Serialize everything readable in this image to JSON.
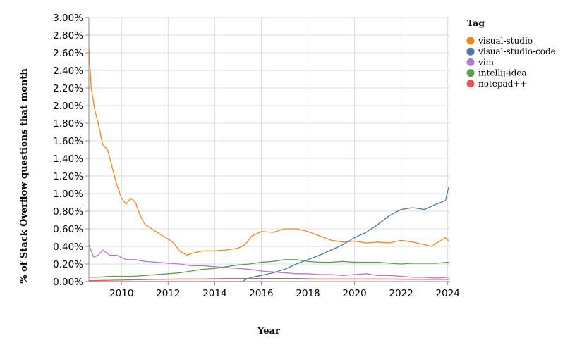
{
  "chart_data": {
    "type": "line",
    "title": "",
    "xlabel": "Year",
    "ylabel": "% of Stack Overflow questions that month",
    "xlim": [
      2008.6,
      2024.1
    ],
    "ylim": [
      0,
      3.0
    ],
    "x_ticks": [
      2010,
      2012,
      2014,
      2016,
      2018,
      2020,
      2022,
      2024
    ],
    "x_tick_labels": [
      "2010",
      "2012",
      "2014",
      "2016",
      "2018",
      "2020",
      "2022",
      "2024"
    ],
    "y_ticks": [
      0,
      0.2,
      0.4,
      0.6,
      0.8,
      1.0,
      1.2,
      1.4,
      1.6,
      1.8,
      2.0,
      2.2,
      2.4,
      2.6,
      2.8,
      3.0
    ],
    "y_tick_labels": [
      "0.00%",
      "0.20%",
      "0.40%",
      "0.60%",
      "0.80%",
      "1.00%",
      "1.20%",
      "1.40%",
      "1.60%",
      "1.80%",
      "2.00%",
      "2.20%",
      "2.40%",
      "2.60%",
      "2.80%",
      "3.00%"
    ],
    "grid": true,
    "legend": {
      "title": "Tag",
      "position": "right"
    },
    "series": [
      {
        "name": "visual-studio",
        "color": "#f58518",
        "points": [
          [
            2008.6,
            2.65
          ],
          [
            2008.7,
            2.2
          ],
          [
            2008.85,
            1.95
          ],
          [
            2009.0,
            1.8
          ],
          [
            2009.2,
            1.55
          ],
          [
            2009.4,
            1.5
          ],
          [
            2009.6,
            1.3
          ],
          [
            2009.8,
            1.1
          ],
          [
            2010.0,
            0.95
          ],
          [
            2010.2,
            0.88
          ],
          [
            2010.4,
            0.95
          ],
          [
            2010.6,
            0.9
          ],
          [
            2010.8,
            0.75
          ],
          [
            2011.0,
            0.65
          ],
          [
            2011.3,
            0.6
          ],
          [
            2011.6,
            0.55
          ],
          [
            2011.9,
            0.5
          ],
          [
            2012.2,
            0.45
          ],
          [
            2012.5,
            0.35
          ],
          [
            2012.8,
            0.3
          ],
          [
            2013.0,
            0.32
          ],
          [
            2013.5,
            0.35
          ],
          [
            2014.0,
            0.35
          ],
          [
            2014.5,
            0.36
          ],
          [
            2015.0,
            0.38
          ],
          [
            2015.3,
            0.42
          ],
          [
            2015.6,
            0.52
          ],
          [
            2016.0,
            0.57
          ],
          [
            2016.5,
            0.56
          ],
          [
            2017.0,
            0.6
          ],
          [
            2017.5,
            0.6
          ],
          [
            2018.0,
            0.57
          ],
          [
            2018.5,
            0.52
          ],
          [
            2019.0,
            0.47
          ],
          [
            2019.5,
            0.45
          ],
          [
            2020.0,
            0.46
          ],
          [
            2020.5,
            0.44
          ],
          [
            2021.0,
            0.45
          ],
          [
            2021.5,
            0.44
          ],
          [
            2022.0,
            0.47
          ],
          [
            2022.5,
            0.45
          ],
          [
            2023.0,
            0.42
          ],
          [
            2023.3,
            0.4
          ],
          [
            2023.6,
            0.45
          ],
          [
            2023.9,
            0.5
          ],
          [
            2024.05,
            0.46
          ]
        ]
      },
      {
        "name": "visual-studio-code",
        "color": "#4c78a8",
        "points": [
          [
            2008.6,
            0
          ],
          [
            2015.2,
            0
          ],
          [
            2015.3,
            0.02
          ],
          [
            2015.6,
            0.05
          ],
          [
            2016.0,
            0.07
          ],
          [
            2016.5,
            0.1
          ],
          [
            2017.0,
            0.14
          ],
          [
            2017.5,
            0.2
          ],
          [
            2018.0,
            0.25
          ],
          [
            2018.5,
            0.3
          ],
          [
            2019.0,
            0.36
          ],
          [
            2019.5,
            0.42
          ],
          [
            2020.0,
            0.5
          ],
          [
            2020.5,
            0.56
          ],
          [
            2021.0,
            0.65
          ],
          [
            2021.5,
            0.75
          ],
          [
            2022.0,
            0.82
          ],
          [
            2022.5,
            0.84
          ],
          [
            2023.0,
            0.82
          ],
          [
            2023.5,
            0.88
          ],
          [
            2023.9,
            0.92
          ],
          [
            2024.05,
            1.08
          ]
        ]
      },
      {
        "name": "vim",
        "color": "#b279d2",
        "points": [
          [
            2008.6,
            0.42
          ],
          [
            2008.8,
            0.28
          ],
          [
            2009.0,
            0.3
          ],
          [
            2009.2,
            0.36
          ],
          [
            2009.5,
            0.3
          ],
          [
            2009.8,
            0.3
          ],
          [
            2010.2,
            0.25
          ],
          [
            2010.6,
            0.25
          ],
          [
            2011.0,
            0.23
          ],
          [
            2011.5,
            0.22
          ],
          [
            2012.0,
            0.21
          ],
          [
            2012.5,
            0.2
          ],
          [
            2013.0,
            0.18
          ],
          [
            2013.5,
            0.18
          ],
          [
            2014.0,
            0.17
          ],
          [
            2014.5,
            0.16
          ],
          [
            2015.0,
            0.15
          ],
          [
            2015.5,
            0.14
          ],
          [
            2016.0,
            0.12
          ],
          [
            2016.5,
            0.11
          ],
          [
            2017.0,
            0.1
          ],
          [
            2017.5,
            0.09
          ],
          [
            2018.0,
            0.09
          ],
          [
            2018.5,
            0.08
          ],
          [
            2019.0,
            0.08
          ],
          [
            2019.5,
            0.07
          ],
          [
            2020.0,
            0.08
          ],
          [
            2020.5,
            0.09
          ],
          [
            2021.0,
            0.07
          ],
          [
            2021.5,
            0.07
          ],
          [
            2022.0,
            0.06
          ],
          [
            2022.5,
            0.05
          ],
          [
            2023.0,
            0.05
          ],
          [
            2023.5,
            0.04
          ],
          [
            2024.05,
            0.05
          ]
        ]
      },
      {
        "name": "intellij-idea",
        "color": "#54a24b",
        "points": [
          [
            2008.6,
            0.05
          ],
          [
            2009.0,
            0.05
          ],
          [
            2009.5,
            0.06
          ],
          [
            2010.0,
            0.06
          ],
          [
            2010.5,
            0.06
          ],
          [
            2011.0,
            0.07
          ],
          [
            2011.5,
            0.08
          ],
          [
            2012.0,
            0.09
          ],
          [
            2012.5,
            0.1
          ],
          [
            2013.0,
            0.12
          ],
          [
            2013.5,
            0.14
          ],
          [
            2014.0,
            0.15
          ],
          [
            2014.5,
            0.17
          ],
          [
            2015.0,
            0.19
          ],
          [
            2015.5,
            0.2
          ],
          [
            2016.0,
            0.22
          ],
          [
            2016.5,
            0.23
          ],
          [
            2017.0,
            0.25
          ],
          [
            2017.5,
            0.25
          ],
          [
            2018.0,
            0.23
          ],
          [
            2018.5,
            0.22
          ],
          [
            2019.0,
            0.22
          ],
          [
            2019.5,
            0.23
          ],
          [
            2020.0,
            0.22
          ],
          [
            2020.5,
            0.22
          ],
          [
            2021.0,
            0.22
          ],
          [
            2021.5,
            0.21
          ],
          [
            2022.0,
            0.2
          ],
          [
            2022.5,
            0.21
          ],
          [
            2023.0,
            0.21
          ],
          [
            2023.5,
            0.21
          ],
          [
            2024.05,
            0.22
          ]
        ]
      },
      {
        "name": "notepad++",
        "color": "#e45756",
        "points": [
          [
            2008.6,
            0.01
          ],
          [
            2009.5,
            0.015
          ],
          [
            2010.5,
            0.02
          ],
          [
            2011.5,
            0.025
          ],
          [
            2012.5,
            0.03
          ],
          [
            2013.5,
            0.03
          ],
          [
            2014.5,
            0.035
          ],
          [
            2015.5,
            0.035
          ],
          [
            2016.5,
            0.035
          ],
          [
            2017.5,
            0.035
          ],
          [
            2018.5,
            0.03
          ],
          [
            2019.5,
            0.03
          ],
          [
            2020.5,
            0.03
          ],
          [
            2021.5,
            0.03
          ],
          [
            2022.5,
            0.025
          ],
          [
            2023.5,
            0.025
          ],
          [
            2024.05,
            0.025
          ]
        ]
      }
    ]
  }
}
